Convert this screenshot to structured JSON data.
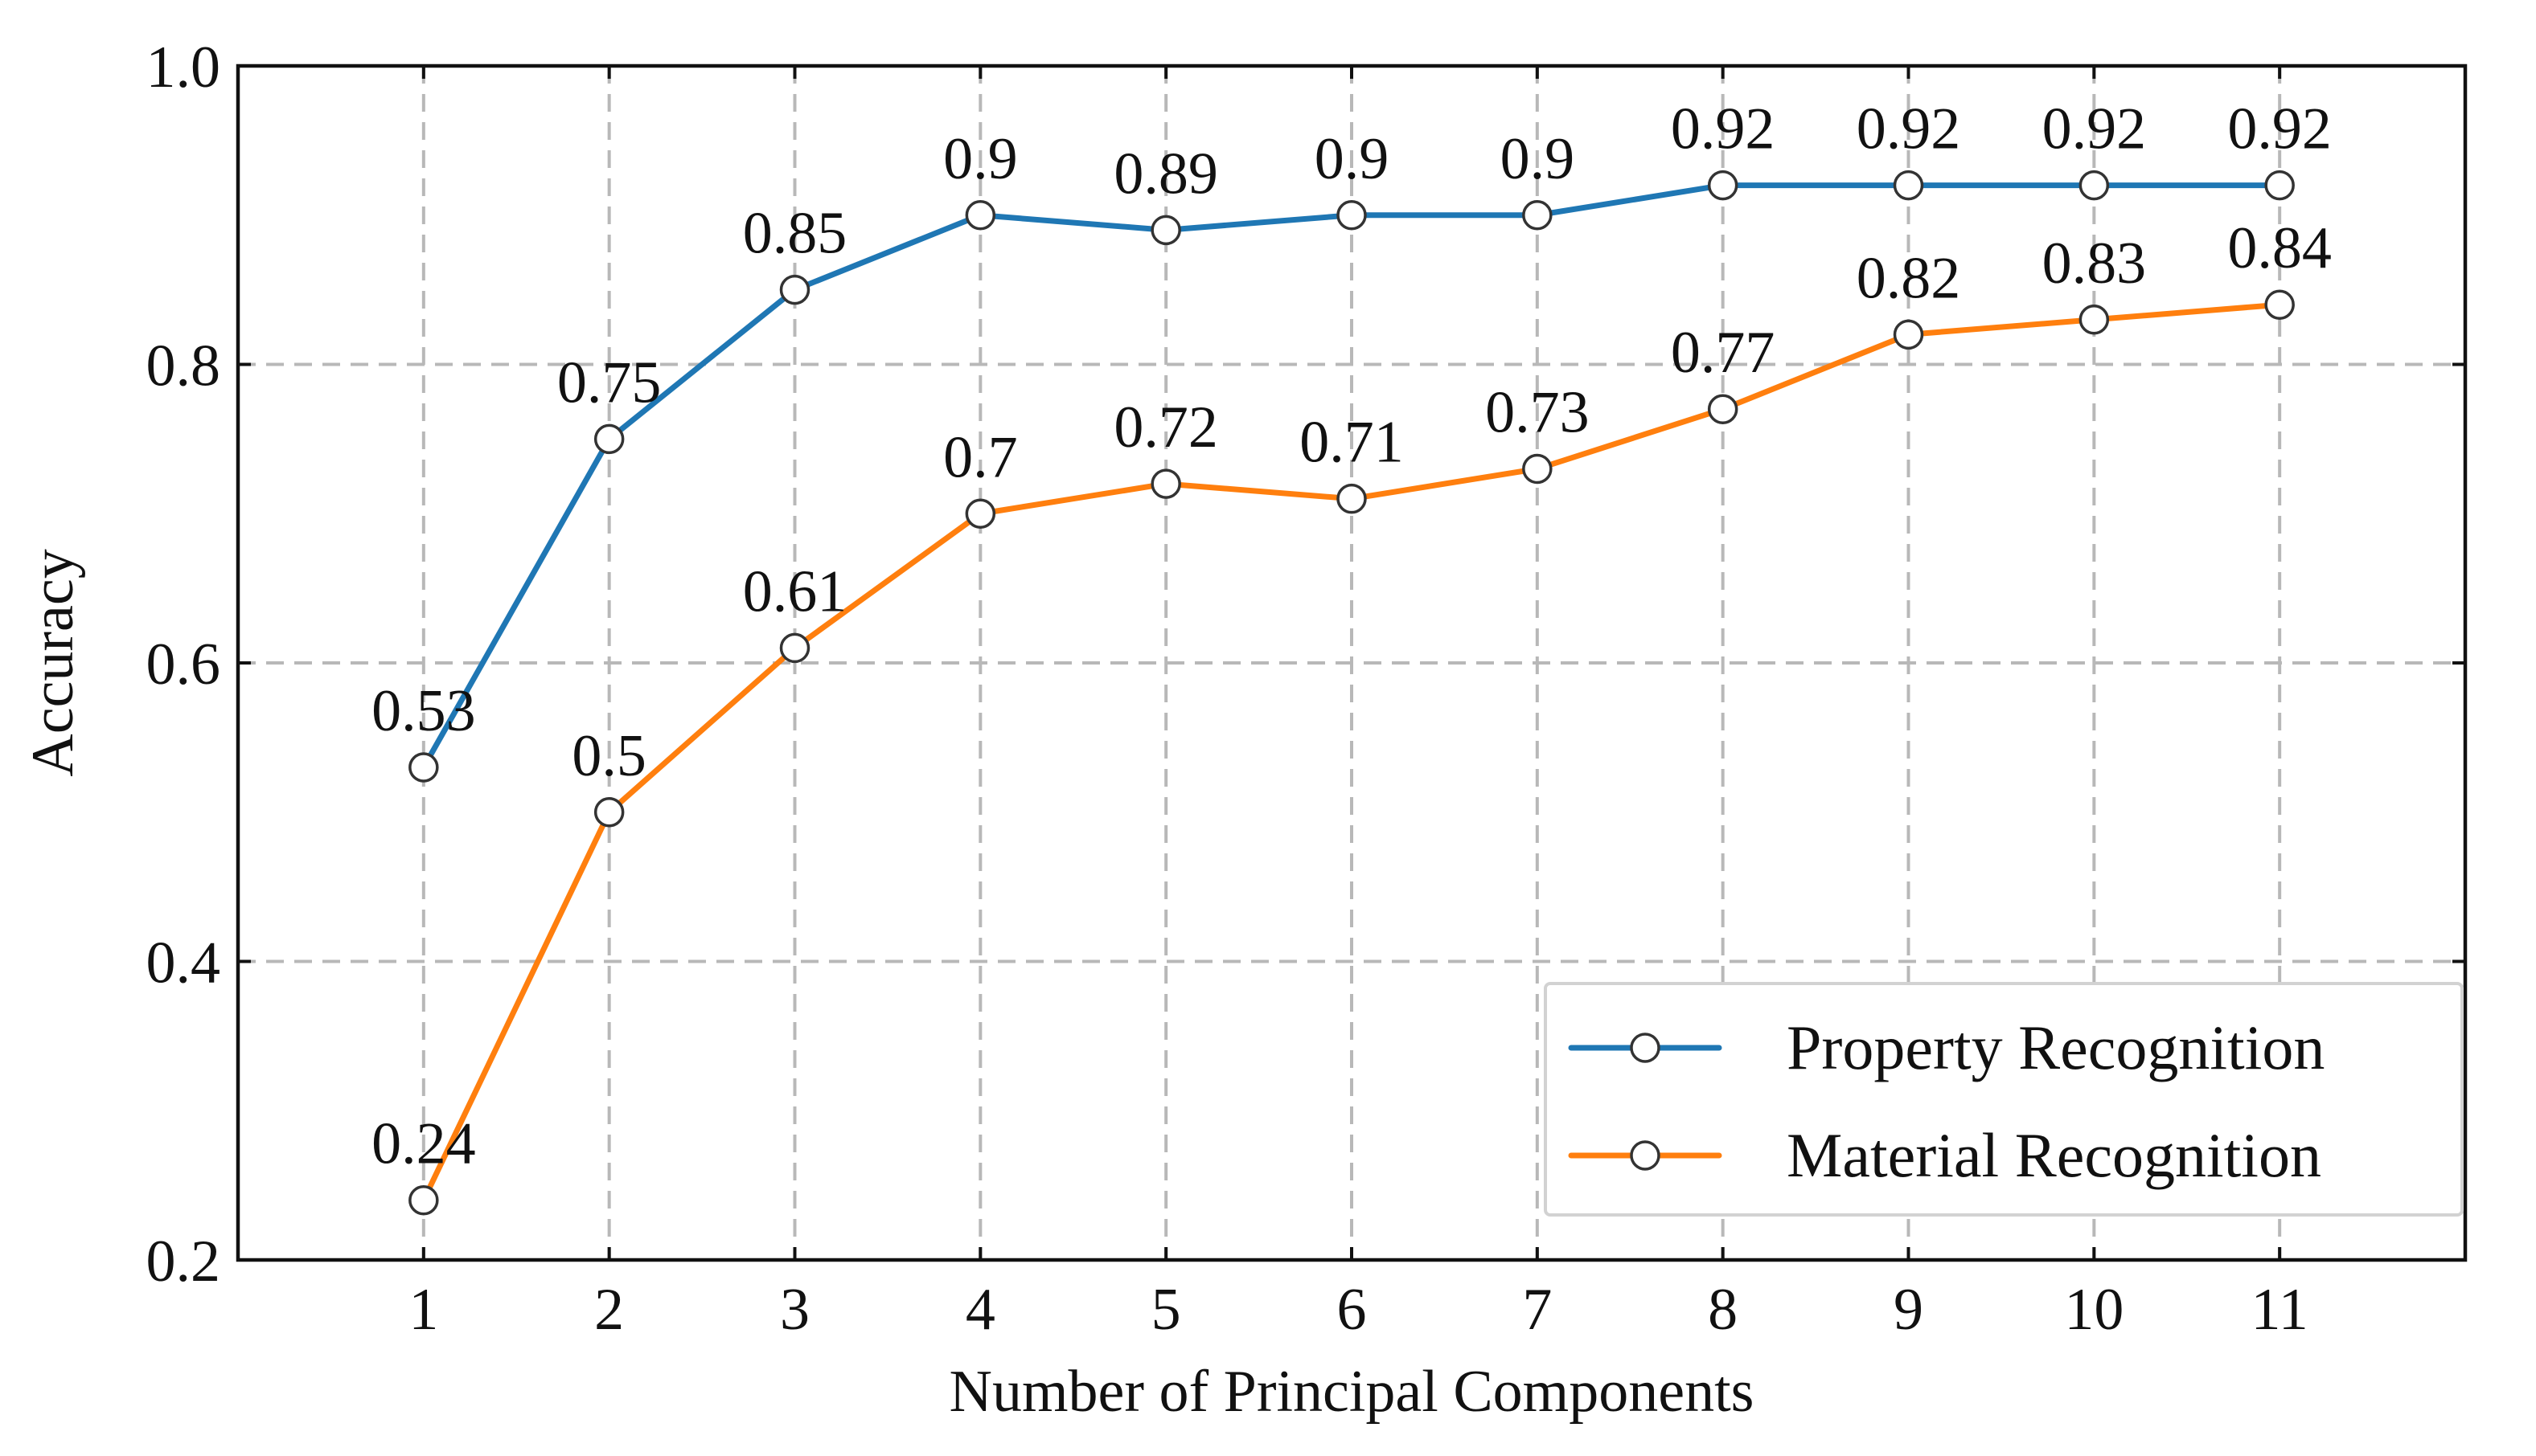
{
  "chart_data": {
    "type": "line",
    "title": "",
    "xlabel": "Number of Principal Components",
    "ylabel": "Accuracy",
    "x": [
      1,
      2,
      3,
      4,
      5,
      6,
      7,
      8,
      9,
      10,
      11
    ],
    "xlim": [
      0,
      12
    ],
    "ylim": [
      0.2,
      1.0
    ],
    "x_ticks": [
      "1",
      "2",
      "3",
      "4",
      "5",
      "6",
      "7",
      "8",
      "9",
      "10",
      "11"
    ],
    "y_ticks": [
      {
        "value": 0.2,
        "label": "0.2"
      },
      {
        "value": 0.4,
        "label": "0.4"
      },
      {
        "value": 0.6,
        "label": "0.6"
      },
      {
        "value": 0.8,
        "label": "0.8"
      },
      {
        "value": 1.0,
        "label": "1.0"
      }
    ],
    "grid": true,
    "legend_position": "bottom-right",
    "series": [
      {
        "name": "Property Recognition",
        "color": "#1f77b4",
        "values": [
          0.53,
          0.75,
          0.85,
          0.9,
          0.89,
          0.9,
          0.9,
          0.92,
          0.92,
          0.92,
          0.92
        ],
        "labels": [
          "0.53",
          "0.75",
          "0.85",
          "0.9",
          "0.89",
          "0.9",
          "0.9",
          "0.92",
          "0.92",
          "0.92",
          "0.92"
        ]
      },
      {
        "name": "Material Recognition",
        "color": "#ff7f0e",
        "values": [
          0.24,
          0.5,
          0.61,
          0.7,
          0.72,
          0.71,
          0.73,
          0.77,
          0.82,
          0.83,
          0.84
        ],
        "labels": [
          "0.24",
          "0.5",
          "0.61",
          "0.7",
          "0.72",
          "0.71",
          "0.73",
          "0.77",
          "0.82",
          "0.83",
          "0.84"
        ]
      }
    ]
  }
}
